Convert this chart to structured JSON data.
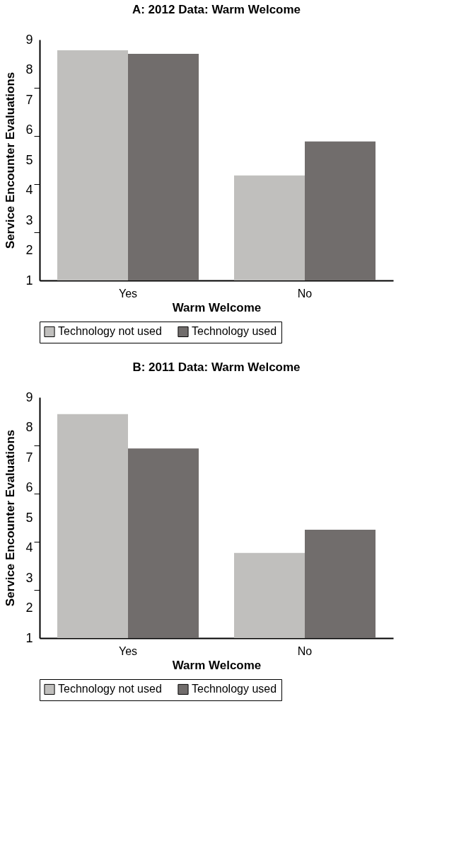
{
  "chart_data": [
    {
      "type": "bar",
      "title": "A: 2012 Data: Warm Welcome",
      "xlabel": "Warm Welcome",
      "ylabel": "Service Encounter Evaluations",
      "categories": [
        "Yes",
        "No"
      ],
      "series": [
        {
          "name": "Technology not used",
          "color": "#c0bfbd",
          "values": [
            8.65,
            4.49
          ]
        },
        {
          "name": "Technology used",
          "color": "#716d6c",
          "values": [
            8.53,
            5.62
          ]
        }
      ],
      "ylim": [
        1,
        9
      ],
      "yticks": [
        1,
        2,
        3,
        4,
        5,
        6,
        7,
        8,
        9,
        {
          "value": 2.6,
          "label": null
        },
        {
          "value": 4.2,
          "label": null
        },
        {
          "value": 5.8,
          "label": null
        },
        {
          "value": 7.4,
          "label": null
        }
      ],
      "grid": false,
      "legend": "bottom"
    },
    {
      "type": "bar",
      "title": "B: 2011 Data: Warm Welcome",
      "xlabel": "Warm Welcome",
      "ylabel": "Service Encounter Evaluations",
      "categories": [
        "Yes",
        "No"
      ],
      "series": [
        {
          "name": "Technology not used",
          "color": "#c0bfbd",
          "values": [
            8.44,
            3.83
          ]
        },
        {
          "name": "Technology used",
          "color": "#716d6c",
          "values": [
            7.3,
            4.6
          ]
        }
      ],
      "ylim": [
        1,
        9
      ],
      "yticks": [
        1,
        2,
        3,
        4,
        5,
        6,
        7,
        8,
        9,
        {
          "value": 2.6,
          "label": null
        },
        {
          "value": 4.2,
          "label": null
        },
        {
          "value": 5.8,
          "label": null
        },
        {
          "value": 7.4,
          "label": null
        }
      ],
      "grid": false,
      "legend": "bottom"
    }
  ]
}
